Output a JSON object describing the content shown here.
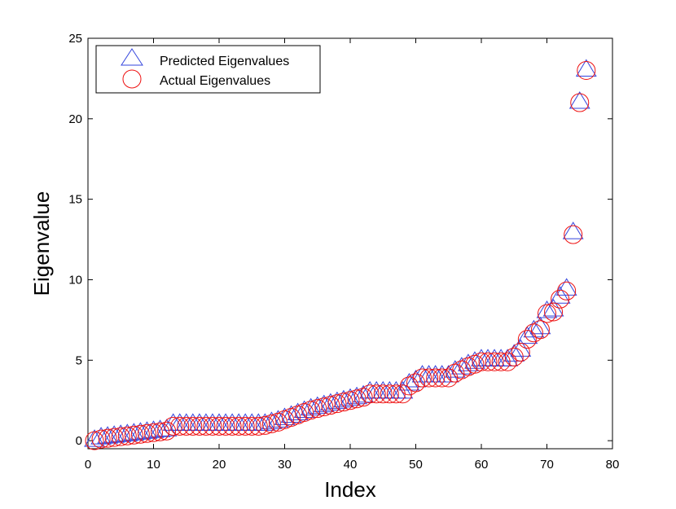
{
  "chart_data": {
    "type": "scatter",
    "title": "",
    "xlabel": "Index",
    "ylabel": "Eigenvalue",
    "xlim": [
      0,
      80
    ],
    "ylim": [
      -0.5,
      25
    ],
    "xticks": [
      0,
      10,
      20,
      30,
      40,
      50,
      60,
      70,
      80
    ],
    "yticks": [
      0,
      5,
      10,
      15,
      20,
      25
    ],
    "grid": false,
    "legend_position": "top-left",
    "series": [
      {
        "name": "Predicted Eigenvalues",
        "marker": "triangle",
        "color": "#3344dd",
        "x": [
          1,
          2,
          3,
          4,
          5,
          6,
          7,
          8,
          9,
          10,
          11,
          12,
          13,
          14,
          15,
          16,
          17,
          18,
          19,
          20,
          21,
          22,
          23,
          24,
          25,
          26,
          27,
          28,
          29,
          30,
          31,
          32,
          33,
          34,
          35,
          36,
          37,
          38,
          39,
          40,
          41,
          42,
          43,
          44,
          45,
          46,
          47,
          48,
          49,
          50,
          51,
          52,
          53,
          54,
          55,
          56,
          57,
          58,
          59,
          60,
          61,
          62,
          63,
          64,
          65,
          66,
          67,
          68,
          69,
          70,
          71,
          72,
          73,
          74,
          75,
          76
        ],
        "y": [
          0.0,
          0.15,
          0.2,
          0.25,
          0.3,
          0.35,
          0.4,
          0.45,
          0.5,
          0.55,
          0.6,
          0.65,
          1.0,
          1.0,
          1.0,
          1.0,
          1.0,
          1.0,
          1.0,
          1.0,
          1.0,
          1.0,
          1.0,
          1.0,
          1.0,
          1.0,
          1.0,
          1.1,
          1.2,
          1.35,
          1.5,
          1.65,
          1.8,
          1.95,
          2.05,
          2.15,
          2.25,
          2.35,
          2.45,
          2.55,
          2.65,
          2.75,
          3.0,
          3.0,
          3.0,
          3.0,
          3.0,
          3.0,
          3.5,
          3.7,
          4.0,
          4.0,
          4.0,
          4.0,
          4.0,
          4.3,
          4.5,
          4.7,
          4.85,
          5.0,
          5.0,
          5.0,
          5.0,
          5.0,
          5.3,
          5.6,
          6.4,
          6.8,
          7.0,
          8.0,
          8.1,
          8.9,
          9.4,
          12.9,
          21.0,
          23.0
        ]
      },
      {
        "name": "Actual Eigenvalues",
        "marker": "circle",
        "color": "#ee1111",
        "x": [
          1,
          2,
          3,
          4,
          5,
          6,
          7,
          8,
          9,
          10,
          11,
          12,
          13,
          14,
          15,
          16,
          17,
          18,
          19,
          20,
          21,
          22,
          23,
          24,
          25,
          26,
          27,
          28,
          29,
          30,
          31,
          32,
          33,
          34,
          35,
          36,
          37,
          38,
          39,
          40,
          41,
          42,
          43,
          44,
          45,
          46,
          47,
          48,
          49,
          50,
          51,
          52,
          53,
          54,
          55,
          56,
          57,
          58,
          59,
          60,
          61,
          62,
          63,
          64,
          65,
          66,
          67,
          68,
          69,
          70,
          71,
          72,
          73,
          74,
          75,
          76
        ],
        "y": [
          0.0,
          0.1,
          0.15,
          0.2,
          0.25,
          0.3,
          0.35,
          0.4,
          0.45,
          0.5,
          0.55,
          0.6,
          0.9,
          0.9,
          0.9,
          0.9,
          0.9,
          0.9,
          0.9,
          0.9,
          0.9,
          0.9,
          0.9,
          0.9,
          0.9,
          0.9,
          0.95,
          1.05,
          1.15,
          1.3,
          1.45,
          1.6,
          1.75,
          1.9,
          2.0,
          2.1,
          2.2,
          2.3,
          2.4,
          2.5,
          2.6,
          2.7,
          2.9,
          2.9,
          2.9,
          2.9,
          2.9,
          2.9,
          3.4,
          3.6,
          3.9,
          3.9,
          3.9,
          3.9,
          3.9,
          4.2,
          4.4,
          4.6,
          4.75,
          4.9,
          4.9,
          4.9,
          4.9,
          4.9,
          5.2,
          5.5,
          6.3,
          6.7,
          6.9,
          7.9,
          8.0,
          8.8,
          9.3,
          12.8,
          21.0,
          23.0
        ]
      }
    ]
  }
}
